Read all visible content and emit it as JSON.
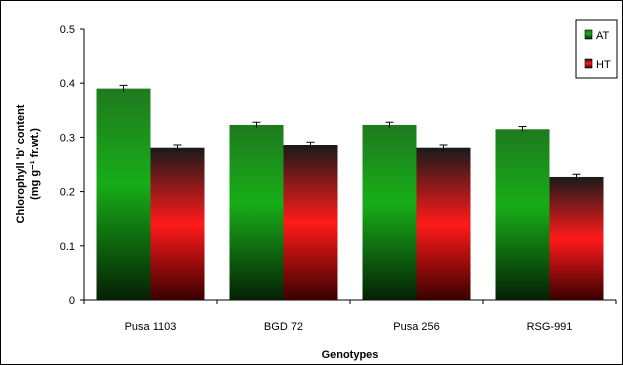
{
  "chart_data": {
    "type": "bar",
    "title": "",
    "xlabel": "Genotypes",
    "ylabel_line1": "Chlorophyll 'b' content",
    "ylabel_line2": "(mg g⁻¹ fr.wt.)",
    "ylim": [
      0,
      0.5
    ],
    "yticks": [
      "0",
      "0.1",
      "0.2",
      "0.3",
      "0.4",
      "0.5"
    ],
    "categories": [
      "Pusa 1103",
      "BGD 72",
      "Pusa 256",
      "RSG-991"
    ],
    "series": [
      {
        "name": "AT",
        "values": [
          0.39,
          0.323,
          0.323,
          0.315
        ],
        "errors": [
          0.006,
          0.005,
          0.005,
          0.005
        ],
        "color": "#1f8a1f"
      },
      {
        "name": "HT",
        "values": [
          0.281,
          0.286,
          0.281,
          0.227
        ],
        "errors": [
          0.005,
          0.005,
          0.005,
          0.005
        ],
        "color": "#e01010"
      }
    ],
    "grid": false,
    "legend_position": "top-right"
  }
}
